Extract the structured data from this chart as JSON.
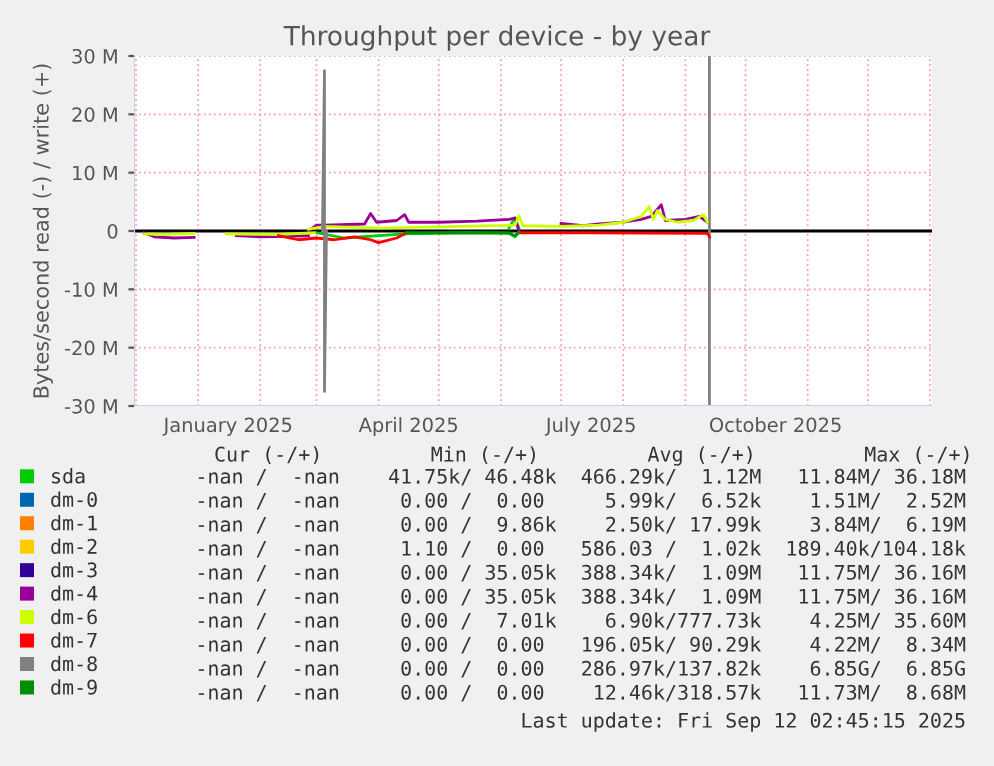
{
  "chart_data": {
    "type": "line",
    "title": "Throughput per device - by year",
    "ylabel": "Bytes/second read (-) / write (+)",
    "xlim": [
      "2024-11-30",
      "2026-01-02"
    ],
    "ylim": [
      -30000000,
      30000000
    ],
    "xticks": [
      {
        "value": "2025-01-16",
        "label": "January 2025"
      },
      {
        "value": "2025-04-16",
        "label": "April 2025"
      },
      {
        "value": "2025-07-16",
        "label": "July 2025"
      },
      {
        "value": "2025-10-16",
        "label": "October 2025"
      }
    ],
    "yticks": [
      {
        "value": -30000000,
        "label": "-30 M"
      },
      {
        "value": -20000000,
        "label": "-20 M"
      },
      {
        "value": -10000000,
        "label": "-10 M"
      },
      {
        "value": 0,
        "label": "0"
      },
      {
        "value": 10000000,
        "label": "10 M"
      },
      {
        "value": 20000000,
        "label": "20 M"
      },
      {
        "value": 30000000,
        "label": "30 M"
      }
    ],
    "grid": true,
    "legend": "bottom",
    "marker": "none",
    "line_style": "solid",
    "ref_lines": [
      {
        "axis": "y",
        "value": 0,
        "color": "#000000"
      },
      {
        "axis": "x",
        "value": "2025-09-13",
        "color": "#808080"
      }
    ],
    "series": [
      {
        "name": "sda",
        "color": "#00cc00",
        "x": [
          "2025-03-01",
          "2025-03-15",
          "2025-04-01",
          "2025-04-15",
          "2025-05-15",
          "2025-06-05",
          "2025-06-08",
          "2025-06-10"
        ],
        "values": [
          -300000,
          -1200000,
          -800000,
          -500000,
          -300000,
          -400000,
          -1000000,
          -200000
        ]
      },
      {
        "color": "#00cc00",
        "x": [
          "2025-06-05",
          "2025-06-08",
          "2025-06-10"
        ],
        "values": [
          500000,
          2300000,
          500000
        ]
      },
      {
        "name": "dm-0",
        "color": "#0066b3"
      },
      {
        "name": "dm-1",
        "color": "#ff8000"
      },
      {
        "name": "dm-2",
        "color": "#ffcc00"
      },
      {
        "name": "dm-3",
        "color": "#330099"
      },
      {
        "name": "dm-4",
        "color": "#990099",
        "x": [
          "2025-02-25",
          "2025-03-01",
          "2025-03-05",
          "2025-03-25",
          "2025-03-28",
          "2025-03-31",
          "2025-04-10",
          "2025-04-14",
          "2025-04-16",
          "2025-05-01",
          "2025-05-20",
          "2025-06-05",
          "2025-06-08",
          "2025-06-10",
          "2025-06-20",
          "2025-07-01",
          "2025-07-12",
          "2025-07-20",
          "2025-08-01",
          "2025-08-10",
          "2025-08-15",
          "2025-08-20",
          "2025-08-22",
          "2025-09-01",
          "2025-09-08",
          "2025-09-12"
        ],
        "values": [
          0,
          1000000,
          1000000,
          1200000,
          3000000,
          1500000,
          1800000,
          2800000,
          1500000,
          1500000,
          1700000,
          2000000,
          2200000,
          0,
          null,
          1300000,
          900000,
          1200000,
          1500000,
          2000000,
          2500000,
          4500000,
          1800000,
          2000000,
          2500000,
          1500000
        ]
      },
      {
        "color": "#990099",
        "x": [
          "2024-12-05",
          "2024-12-10",
          "2024-12-20",
          "2024-12-30",
          "2025-01-08",
          "2025-01-20",
          "2025-02-01",
          "2025-02-15",
          "2025-02-25"
        ],
        "values": [
          -300000,
          -1000000,
          -1200000,
          -1100000,
          null,
          -800000,
          -1000000,
          -900000,
          -800000
        ]
      },
      {
        "name": "dm-6",
        "color": "#ccff00",
        "x": [
          "2025-02-25",
          "2025-03-05",
          "2025-04-01",
          "2025-06-08",
          "2025-06-10",
          "2025-06-12",
          "2025-07-01",
          "2025-07-20",
          "2025-08-01",
          "2025-08-10",
          "2025-08-14",
          "2025-08-16",
          "2025-08-18",
          "2025-08-22",
          "2025-08-28",
          "2025-09-05",
          "2025-09-10",
          "2025-09-12"
        ],
        "values": [
          300000,
          800000,
          500000,
          1000000,
          2600000,
          900000,
          800000,
          1000000,
          1500000,
          2500000,
          4200000,
          2000000,
          3500000,
          2000000,
          1500000,
          1800000,
          2800000,
          1500000
        ]
      },
      {
        "color": "#ccff00",
        "x": [
          "2024-12-05",
          "2024-12-15",
          "2024-12-30",
          "2025-01-08",
          "2025-01-15",
          "2025-02-10",
          "2025-02-28"
        ],
        "values": [
          -500000,
          -600000,
          -400000,
          null,
          -500000,
          -600000,
          -300000
        ]
      },
      {
        "name": "dm-7",
        "color": "#ff0000",
        "x": [
          "2025-02-10",
          "2025-02-20",
          "2025-03-01",
          "2025-03-10",
          "2025-03-20",
          "2025-03-28",
          "2025-04-01",
          "2025-04-10",
          "2025-04-15",
          "2025-05-20",
          "2025-06-10",
          "2025-07-15",
          "2025-09-12",
          "2025-09-13"
        ],
        "values": [
          -800000,
          -1500000,
          -1200000,
          -1500000,
          -1000000,
          -1500000,
          -2000000,
          -1200000,
          -300000,
          null,
          -300000,
          -300000,
          -400000,
          -1000000
        ]
      },
      {
        "name": "dm-8",
        "color": "#808080",
        "x": [
          "2025-03-04",
          "2025-03-05",
          "2025-03-05",
          "2025-03-06"
        ],
        "values": [
          0,
          27500000,
          -27500000,
          0
        ]
      },
      {
        "name": "dm-9",
        "color": "#008f00",
        "x": [
          "2025-04-15",
          "2025-06-05",
          "2025-06-08",
          "2025-06-10"
        ],
        "values": [
          -300000,
          -300000,
          -800000,
          -200000
        ]
      }
    ],
    "annotations": [
      "Cur (-/+)         Min (-/+)         Avg (-/+)         Max (-/+)",
      "-nan /  -nan    41.75k/ 46.48k  466.29k/  1.12M   11.84M/ 36.18M",
      "-nan /  -nan     0.00 /  0.00     5.99k/  6.52k    1.51M/  2.52M",
      "-nan /  -nan     0.00 /  9.86k    2.50k/ 17.99k    3.84M/  6.19M",
      "-nan /  -nan     1.10 /  0.00   586.03 /  1.02k  189.40k/104.18k",
      "-nan /  -nan     0.00 / 35.05k  388.34k/  1.09M   11.75M/ 36.16M",
      "-nan /  -nan     0.00 / 35.05k  388.34k/  1.09M   11.75M/ 36.16M",
      "-nan /  -nan     0.00 /  7.01k    6.90k/777.73k    4.25M/ 35.60M",
      "-nan /  -nan     0.00 /  0.00   196.05k/ 90.29k    4.22M/  8.34M",
      "-nan /  -nan     0.00 /  0.00   286.97k/137.82k    6.85G/  6.85G",
      "-nan /  -nan     0.00 /  0.00    12.46k/318.57k   11.73M/  8.68M",
      "Last update: Fri Sep 12 02:45:15 2025"
    ]
  }
}
